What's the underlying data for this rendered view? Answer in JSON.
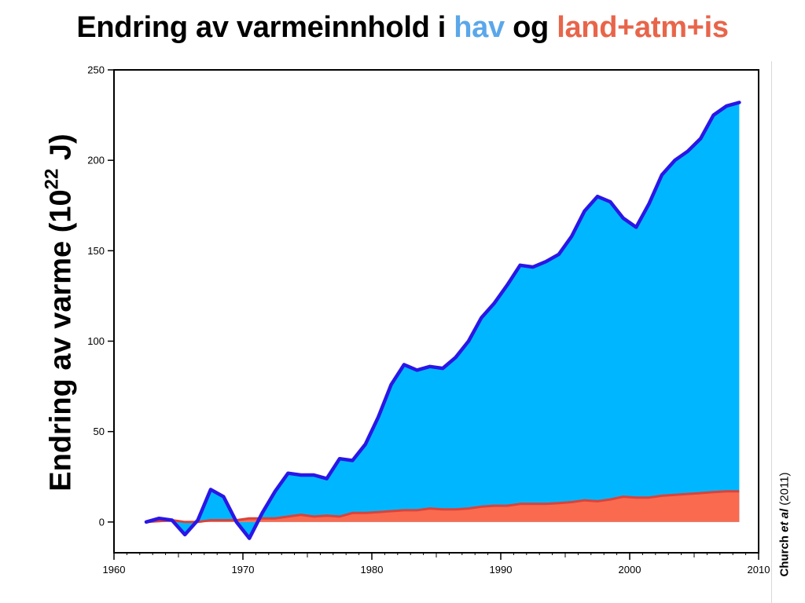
{
  "title": {
    "part1": "Endring av varmeinnhold i ",
    "hav": "hav",
    "og": " og ",
    "land": "land+atm+is"
  },
  "ylabel": {
    "prefix": "Endring av varme (10",
    "exp": "22",
    "suffix": " J)"
  },
  "credit": {
    "author": "Church ",
    "etal": "et al",
    "year": " (2011)"
  },
  "chart_data": {
    "type": "area",
    "xlim": [
      1960,
      2010
    ],
    "ylim": [
      -17,
      250
    ],
    "x_ticks": [
      1960,
      1970,
      1980,
      1990,
      2000,
      2010
    ],
    "y_ticks": [
      0,
      50,
      100,
      150,
      200,
      250
    ],
    "grid": false,
    "colors": {
      "ocean_fill": "#00b7ff",
      "ocean_line": "#2a16e6",
      "land_fill": "#fa6a4e",
      "land_line": "#d9433b"
    },
    "x": [
      1962.5,
      1963.5,
      1964.5,
      1965.5,
      1966.5,
      1967.5,
      1968.5,
      1969.5,
      1970.5,
      1971.5,
      1972.5,
      1973.5,
      1974.5,
      1975.5,
      1976.5,
      1977.5,
      1978.5,
      1979.5,
      1980.5,
      1981.5,
      1982.5,
      1983.5,
      1984.5,
      1985.5,
      1986.5,
      1987.5,
      1988.5,
      1989.5,
      1990.5,
      1991.5,
      1992.5,
      1993.5,
      1994.5,
      1995.5,
      1996.5,
      1997.5,
      1998.5,
      1999.5,
      2000.5,
      2001.5,
      2002.5,
      2003.5,
      2004.5,
      2005.5,
      2006.5,
      2007.5,
      2008.5
    ],
    "series": [
      {
        "role": "ocean",
        "values": [
          0,
          2,
          1,
          -7,
          1,
          18,
          14,
          0,
          -9,
          5,
          17,
          27,
          26,
          26,
          24,
          35,
          34,
          43,
          58,
          76,
          87,
          84,
          86,
          85,
          91,
          100,
          113,
          121,
          131,
          142,
          141,
          144,
          148,
          158,
          172,
          180,
          177,
          168,
          163,
          176,
          192,
          200,
          205,
          212,
          225,
          230,
          232
        ]
      },
      {
        "role": "land_atm_ice",
        "values": [
          0,
          0.5,
          1,
          0,
          0,
          1,
          1,
          1,
          2,
          2,
          2,
          3,
          4,
          3,
          3.5,
          3,
          5,
          5,
          5.5,
          6,
          6.5,
          6.5,
          7.5,
          7,
          7,
          7.5,
          8.5,
          9,
          9,
          10,
          10,
          10,
          10.5,
          11,
          12,
          11.5,
          12.5,
          14,
          13.5,
          13.5,
          14.5,
          15,
          15.5,
          16,
          16.5,
          17,
          17
        ]
      }
    ]
  }
}
